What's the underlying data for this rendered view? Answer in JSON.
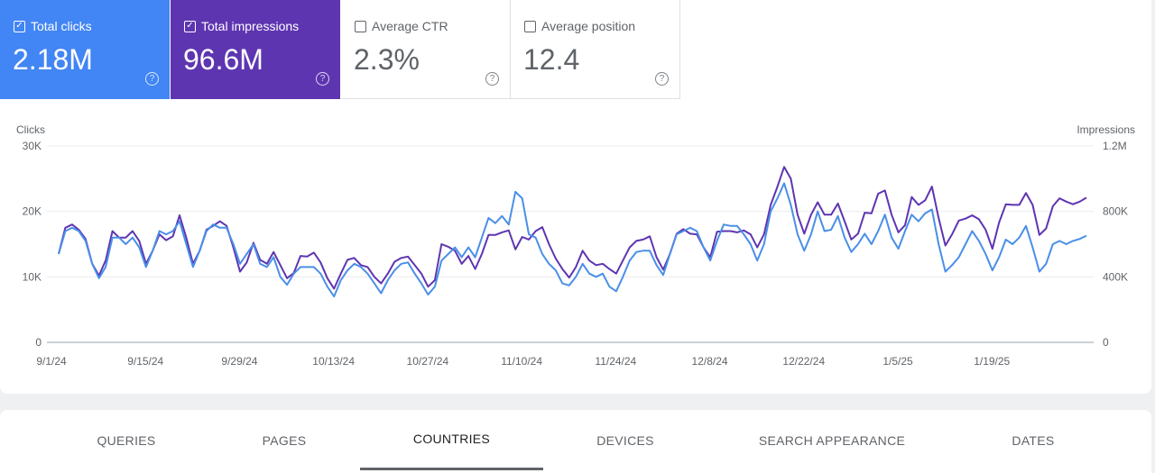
{
  "metrics": [
    {
      "label": "Total clicks",
      "value": "2.18M",
      "checked": true,
      "color": "#4285f4"
    },
    {
      "label": "Total impressions",
      "value": "96.6M",
      "checked": true,
      "color": "#5e35b1"
    },
    {
      "label": "Average CTR",
      "value": "2.3%",
      "checked": false
    },
    {
      "label": "Average position",
      "value": "12.4",
      "checked": false
    }
  ],
  "icons": {
    "checked": "checkbox-checked-icon",
    "unchecked": "checkbox-empty-icon",
    "help": "help-circle-icon"
  },
  "chart_data": {
    "type": "line",
    "left_axis_label": "Clicks",
    "right_axis_label": "Impressions",
    "left_ticks": [
      "0",
      "10K",
      "20K",
      "30K"
    ],
    "left_ylim": [
      0,
      30000
    ],
    "right_ticks": [
      "0",
      "400K",
      "800K",
      "1.2M"
    ],
    "right_ylim": [
      0,
      1200000
    ],
    "x_start": "2024-09-01",
    "x_end": "2025-02-01",
    "x_tick_labels": [
      "9/1/24",
      "9/15/24",
      "9/29/24",
      "10/13/24",
      "10/27/24",
      "11/10/24",
      "11/24/24",
      "12/8/24",
      "12/22/24",
      "1/5/25",
      "1/19/25"
    ],
    "grid": true,
    "series": [
      {
        "name": "Clicks",
        "axis": "left",
        "color": "#4a8fe7",
        "values": [
          13500,
          17000,
          17500,
          17000,
          15500,
          12000,
          9800,
          11500,
          16000,
          16000,
          15000,
          16000,
          14500,
          11500,
          14000,
          17000,
          16500,
          17000,
          18500,
          15000,
          11500,
          14000,
          17000,
          18000,
          17500,
          17500,
          15000,
          12000,
          13500,
          15000,
          12000,
          11500,
          13000,
          10000,
          8800,
          10500,
          11500,
          11500,
          11500,
          10500,
          8500,
          7000,
          9500,
          11000,
          12000,
          11500,
          10500,
          9000,
          7500,
          9500,
          11000,
          12000,
          12200,
          10500,
          9000,
          7300,
          8500,
          12500,
          13500,
          14500,
          13000,
          14500,
          13000,
          16000,
          19000,
          18200,
          19300,
          18000,
          23000,
          22000,
          16500,
          16000,
          13500,
          12000,
          11000,
          9000,
          8700,
          10000,
          12000,
          10500,
          10000,
          10500,
          8500,
          7800,
          10000,
          12500,
          13800,
          14000,
          14000,
          11800,
          10300,
          13500,
          16500,
          17000,
          17500,
          17000,
          14500,
          12500,
          15500,
          18000,
          17800,
          17800,
          16500,
          15000,
          12500,
          15000,
          20000,
          22000,
          24300,
          21000,
          16500,
          14000,
          16500,
          20000,
          17000,
          17200,
          19300,
          16000,
          13800,
          15000,
          16600,
          15000,
          17000,
          19500,
          16000,
          14300,
          17000,
          19500,
          18500,
          19700,
          20300,
          15000,
          10800,
          11800,
          13000,
          15000,
          17000,
          15500,
          13500,
          11000,
          13000,
          15700,
          15000,
          16000,
          17800,
          14500,
          10800,
          12000,
          15000,
          15500,
          15000,
          15500,
          15800,
          16300
        ]
      },
      {
        "name": "Impressions",
        "axis": "right",
        "color": "#5e35b1",
        "values": [
          540000,
          700000,
          720000,
          688000,
          632000,
          480000,
          408000,
          500000,
          680000,
          640000,
          640000,
          680000,
          620000,
          480000,
          560000,
          660000,
          624000,
          648000,
          776000,
          640000,
          480000,
          560000,
          688000,
          712000,
          740000,
          712000,
          580000,
          432000,
          488000,
          608000,
          504000,
          480000,
          552000,
          472000,
          392000,
          424000,
          528000,
          524000,
          548000,
          488000,
          392000,
          328000,
          420000,
          504000,
          516000,
          472000,
          460000,
          400000,
          360000,
          420000,
          492000,
          516000,
          524000,
          472000,
          420000,
          340000,
          380000,
          600000,
          584000,
          560000,
          480000,
          528000,
          448000,
          540000,
          656000,
          656000,
          672000,
          684000,
          568000,
          644000,
          628000,
          680000,
          704000,
          600000,
          512000,
          448000,
          396000,
          460000,
          560000,
          500000,
          472000,
          480000,
          448000,
          420000,
          500000,
          580000,
          620000,
          628000,
          648000,
          520000,
          444000,
          540000,
          664000,
          692000,
          664000,
          660000,
          580000,
          520000,
          676000,
          680000,
          680000,
          672000,
          684000,
          660000,
          580000,
          660000,
          840000,
          952000,
          1072000,
          1000000,
          780000,
          664000,
          780000,
          856000,
          780000,
          780000,
          848000,
          740000,
          628000,
          664000,
          792000,
          788000,
          908000,
          928000,
          780000,
          672000,
          716000,
          888000,
          840000,
          868000,
          952000,
          760000,
          592000,
          660000,
          744000,
          756000,
          776000,
          752000,
          688000,
          572000,
          732000,
          844000,
          840000,
          840000,
          912000,
          840000,
          656000,
          696000,
          832000,
          880000,
          860000,
          844000,
          860000,
          884000
        ]
      }
    ]
  },
  "tabs": [
    {
      "label": "QUERIES",
      "active": false
    },
    {
      "label": "PAGES",
      "active": false
    },
    {
      "label": "COUNTRIES",
      "active": true
    },
    {
      "label": "DEVICES",
      "active": false
    },
    {
      "label": "SEARCH APPEARANCE",
      "active": false
    },
    {
      "label": "DATES",
      "active": false
    }
  ]
}
